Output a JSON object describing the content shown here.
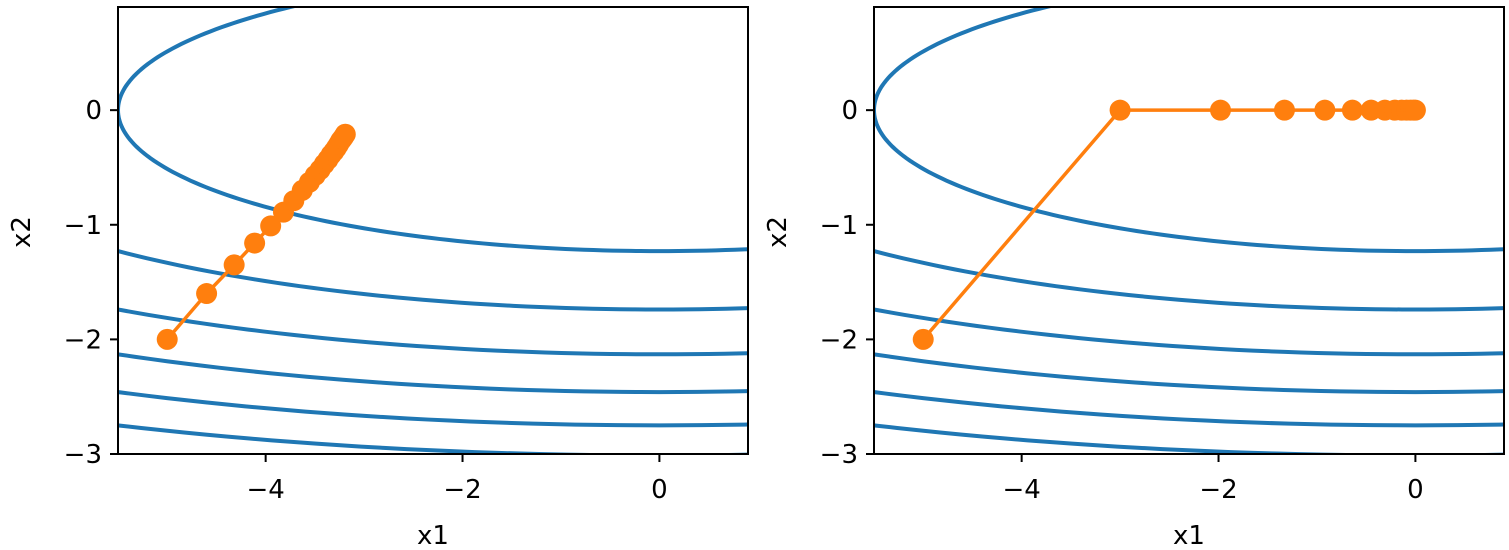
{
  "chart_data": [
    {
      "type": "line",
      "title": "",
      "xlabel": "x1",
      "ylabel": "x2",
      "xlim": [
        -5.5,
        0.9
      ],
      "ylim": [
        -3.0,
        0.9
      ],
      "xticks": [
        -4,
        -2,
        0
      ],
      "xtick_labels": [
        "−4",
        "−2",
        "0"
      ],
      "yticks": [
        0,
        -1,
        -2,
        -3
      ],
      "ytick_labels": [
        "0",
        "−1",
        "−2",
        "−3"
      ],
      "grid": false,
      "contour_color": "#1f77b4",
      "trajectory_color": "#ff7f0e",
      "contours": {
        "function": "0.1*x1^2 + 2*x2^2",
        "levels": [
          3.025,
          6.05,
          9.075,
          12.1,
          15.125,
          18.15
        ]
      },
      "series": [
        {
          "x": [
            -5.0,
            -4.6,
            -4.32,
            -4.112,
            -3.949,
            -3.819,
            -3.714,
            -3.628,
            -3.556,
            -3.497,
            -3.447,
            -3.404,
            -3.367,
            -3.335,
            -3.307,
            -3.282,
            -3.26,
            -3.24,
            -3.222,
            -3.206,
            -3.191
          ],
          "y": [
            -2.0,
            -1.6,
            -1.35,
            -1.16,
            -1.01,
            -0.89,
            -0.79,
            -0.7,
            -0.63,
            -0.57,
            -0.52,
            -0.47,
            -0.43,
            -0.39,
            -0.36,
            -0.33,
            -0.3,
            -0.27,
            -0.25,
            -0.23,
            -0.21
          ]
        }
      ]
    },
    {
      "type": "line",
      "title": "",
      "xlabel": "x1",
      "ylabel": "x2",
      "xlim": [
        -5.5,
        0.9
      ],
      "ylim": [
        -3.0,
        0.9
      ],
      "xticks": [
        -4,
        -2,
        0
      ],
      "xtick_labels": [
        "−4",
        "−2",
        "0"
      ],
      "yticks": [
        0,
        -1,
        -2,
        -3
      ],
      "ytick_labels": [
        "0",
        "−1",
        "−2",
        "−3"
      ],
      "grid": false,
      "contour_color": "#1f77b4",
      "trajectory_color": "#ff7f0e",
      "contours": {
        "function": "0.1*x1^2 + 2*x2^2",
        "levels": [
          3.025,
          6.05,
          9.075,
          12.1,
          15.125,
          18.15
        ]
      },
      "series": [
        {
          "x": [
            -5.0,
            -3.0,
            -1.98,
            -1.33,
            -0.92,
            -0.64,
            -0.45,
            -0.31,
            -0.21,
            -0.14,
            -0.09,
            -0.05,
            -0.02,
            0.0
          ],
          "y": [
            -2.0,
            0.0,
            0.0,
            0.0,
            0.0,
            0.0,
            0.0,
            0.0,
            0.0,
            0.0,
            0.0,
            0.0,
            0.0,
            0.0
          ]
        }
      ]
    }
  ]
}
